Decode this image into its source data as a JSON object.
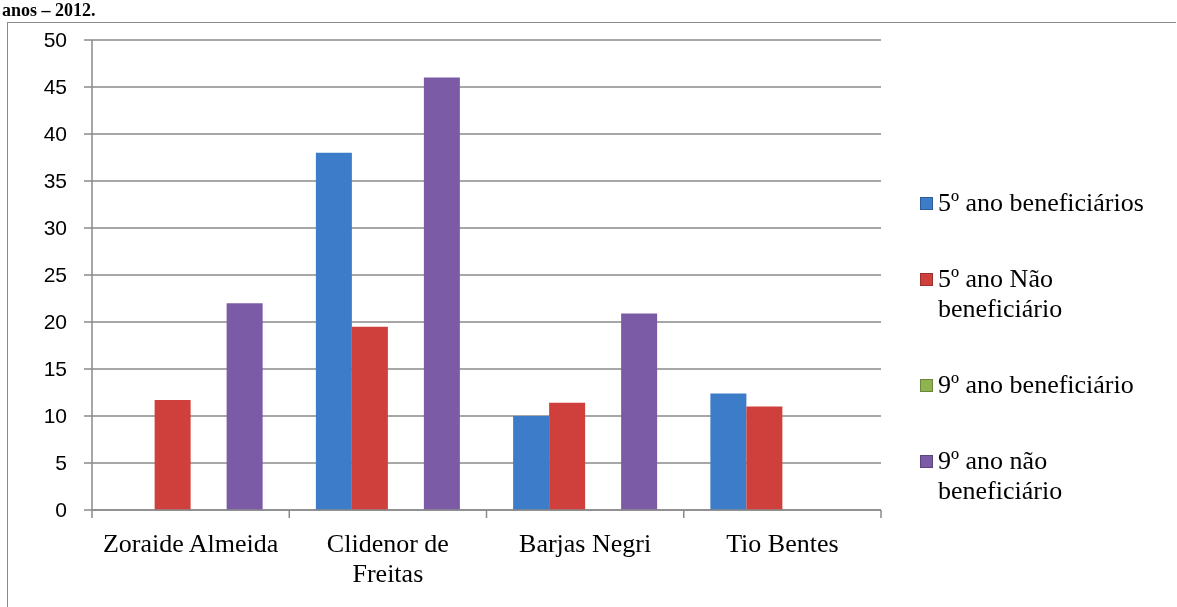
{
  "chart_data": {
    "type": "bar",
    "title": "anos – 2012.",
    "categories": [
      "Zoraide Almeida",
      "Clidenor de Freitas",
      "Barjas Negri",
      "Tio Bentes"
    ],
    "series": [
      {
        "name": "5º ano beneficiários",
        "color": "#3d7cc9",
        "values": [
          null,
          38,
          10,
          12.4
        ]
      },
      {
        "name": "5º ano Não beneficiário",
        "color": "#cf403c",
        "values": [
          11.7,
          19.5,
          11.4,
          11
        ]
      },
      {
        "name": "9º ano beneficiário",
        "color": "#8fb44f",
        "values": [
          null,
          null,
          null,
          null
        ]
      },
      {
        "name": "9º ano não beneficiário",
        "color": "#7b5ba6",
        "values": [
          22,
          46,
          20.9,
          null
        ]
      }
    ],
    "ylim": [
      0,
      50
    ],
    "yticks": [
      0,
      5,
      10,
      15,
      20,
      25,
      30,
      35,
      40,
      45,
      50
    ],
    "grid": "y",
    "legend": "right"
  }
}
